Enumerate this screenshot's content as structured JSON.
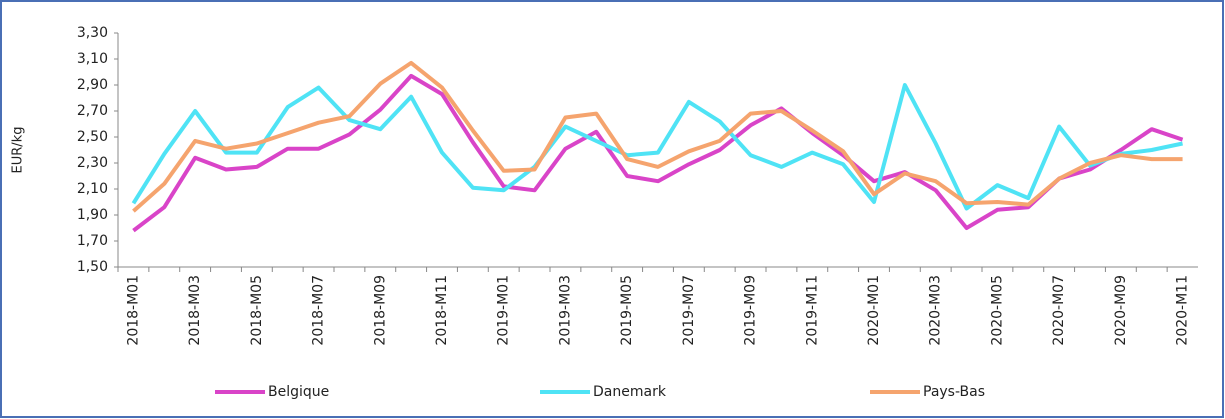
{
  "chart_data": {
    "type": "line",
    "y_label": "EUR/kg",
    "categories": [
      "2018-M01",
      null,
      "2018-M03",
      null,
      "2018-M05",
      null,
      "2018-M07",
      null,
      "2018-M09",
      null,
      "2018-M11",
      null,
      "2019-M01",
      null,
      "2019-M03",
      null,
      "2019-M05",
      null,
      "2019-M07",
      null,
      "2019-M09",
      null,
      "2019-M11",
      null,
      "2020-M01",
      null,
      "2020-M03",
      null,
      "2020-M05",
      null,
      "2020-M07",
      null,
      "2020-M09",
      null,
      "2020-M11"
    ],
    "series": [
      {
        "name": "Belgique",
        "color": "#d944c8",
        "values": [
          1.78,
          1.96,
          2.34,
          2.25,
          2.27,
          2.41,
          2.41,
          2.52,
          2.71,
          2.97,
          2.83,
          2.46,
          2.12,
          2.09,
          2.41,
          2.54,
          2.2,
          2.16,
          2.29,
          2.4,
          2.59,
          2.72,
          2.53,
          2.36,
          2.16,
          2.23,
          2.09,
          1.8,
          1.94,
          1.96,
          2.18,
          2.25,
          2.4,
          2.56,
          2.48
        ]
      },
      {
        "name": "Danemark",
        "color": "#4fe3f5",
        "values": [
          1.99,
          2.37,
          2.7,
          2.38,
          2.38,
          2.73,
          2.88,
          2.63,
          2.56,
          2.81,
          2.38,
          2.11,
          2.09,
          2.27,
          2.58,
          2.47,
          2.36,
          2.38,
          2.77,
          2.62,
          2.36,
          2.27,
          2.38,
          2.29,
          2.0,
          2.9,
          2.45,
          1.95,
          2.13,
          2.03,
          2.58,
          2.28,
          2.37,
          2.4,
          2.45
        ]
      },
      {
        "name": "Pays-Bas",
        "color": "#f5a46e",
        "values": [
          1.93,
          2.14,
          2.47,
          2.41,
          2.45,
          2.53,
          2.61,
          2.66,
          2.91,
          3.07,
          2.88,
          2.55,
          2.24,
          2.25,
          2.65,
          2.68,
          2.33,
          2.27,
          2.39,
          2.47,
          2.68,
          2.7,
          2.55,
          2.39,
          2.06,
          2.22,
          2.16,
          1.99,
          2.0,
          1.98,
          2.18,
          2.3,
          2.36,
          2.33,
          2.33
        ]
      }
    ],
    "ylim": [
      1.5,
      3.3
    ],
    "yticks": [
      {
        "value": 1.5,
        "label": "1,50"
      },
      {
        "value": 1.7,
        "label": "1,70"
      },
      {
        "value": 1.9,
        "label": "1,90"
      },
      {
        "value": 2.1,
        "label": "2,10"
      },
      {
        "value": 2.3,
        "label": "2,30"
      },
      {
        "value": 2.5,
        "label": "2,50"
      },
      {
        "value": 2.7,
        "label": "2,70"
      },
      {
        "value": 2.9,
        "label": "2,90"
      },
      {
        "value": 3.1,
        "label": "3,10"
      },
      {
        "value": 3.3,
        "label": "3,30"
      }
    ],
    "grid": false,
    "legend": "bottom"
  }
}
